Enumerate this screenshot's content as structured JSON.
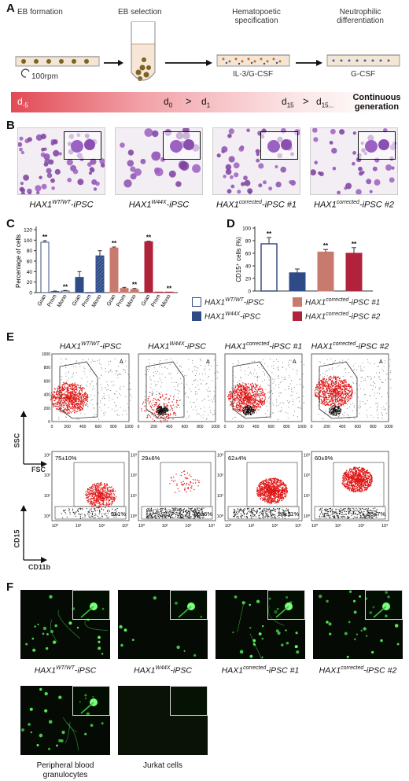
{
  "panelA": {
    "label": "A",
    "steps": [
      "EB formation",
      "EB selection",
      "Hematopoetic specification",
      "Neutrophilic differentiation"
    ],
    "rpm": "100rpm",
    "cytokines1": "IL-3/G-CSF",
    "cytokines2": "G-CSF",
    "timeline": {
      "dm5": "d",
      "dm5sub": "-5",
      "d0": "d",
      "d0sub": "0",
      "gt1": ">",
      "d1": "d",
      "d1sub": "1",
      "d15": "d",
      "d15sub": "15",
      "gt2": ">",
      "d15b": "d",
      "d15bsub": "15...",
      "continuous": "Continuous generation"
    }
  },
  "panelB": {
    "label": "B",
    "captions": [
      {
        "prefix": "HAX1",
        "sup": "WT/WT",
        "suffix": "-iPSC"
      },
      {
        "prefix": "HAX1",
        "sup": "W44X",
        "suffix": "-iPSC"
      },
      {
        "prefix": "HAX1",
        "sup": "corrected",
        "suffix": "-iPSC #1"
      },
      {
        "prefix": "HAX1",
        "sup": "corrected",
        "suffix": "-iPSC #2"
      }
    ]
  },
  "panelC": {
    "label": "C",
    "ylabel": "Percentage of cells",
    "yticks": [
      "0",
      "20",
      "40",
      "60",
      "80",
      "100",
      "120"
    ],
    "categories": [
      "Gran",
      "Prom",
      "Mono"
    ],
    "sig": "**"
  },
  "panelD": {
    "label": "D",
    "ylabel": "CD15⁺ cells (%)",
    "yticks": [
      "0",
      "20",
      "40",
      "60",
      "80",
      "100"
    ],
    "sig": "**"
  },
  "legend": [
    {
      "prefix": "HAX1",
      "sup": "WT/WT",
      "suffix": "-iPSC",
      "color": "#ffffff"
    },
    {
      "prefix": "HAX1",
      "sup": "W44X",
      "suffix": "-iPSC",
      "color": "#2e4a87"
    },
    {
      "prefix": "HAX1",
      "sup": "corrected",
      "suffix": "-iPSC #1",
      "color": "#c97a6e"
    },
    {
      "prefix": "HAX1",
      "sup": "corrected",
      "suffix": "-iPSC #2",
      "color": "#b0233a"
    }
  ],
  "chart_data": [
    {
      "type": "bar",
      "panel": "C",
      "categories": [
        "Gran",
        "Prom",
        "Mono"
      ],
      "ylabel": "Percentage of cells",
      "ylim": [
        0,
        120
      ],
      "series": [
        {
          "name": "HAX1 WT/WT-iPSC",
          "values": [
            96,
            2,
            3
          ],
          "errors": [
            3,
            1,
            1
          ]
        },
        {
          "name": "HAX1 W44X-iPSC",
          "values": [
            29,
            0,
            70
          ],
          "errors": [
            11,
            0,
            10
          ]
        },
        {
          "name": "HAX1 corrected-iPSC #1",
          "values": [
            85,
            8,
            6
          ],
          "errors": [
            2,
            2,
            2
          ]
        },
        {
          "name": "HAX1 corrected-iPSC #2",
          "values": [
            97,
            1,
            1
          ],
          "errors": [
            1,
            0,
            0
          ]
        }
      ]
    },
    {
      "type": "bar",
      "panel": "D",
      "categories": [
        "HAX1 WT/WT-iPSC",
        "HAX1 W44X-iPSC",
        "HAX1 corrected-iPSC #1",
        "HAX1 corrected-iPSC #2"
      ],
      "ylabel": "CD15⁺ cells (%)",
      "ylim": [
        0,
        100
      ],
      "values": [
        75,
        29,
        62,
        60
      ],
      "errors": [
        10,
        6,
        4,
        9
      ]
    }
  ],
  "panelE": {
    "label": "E",
    "titles": [
      {
        "prefix": "HAX1",
        "sup": "WT/WT",
        "suffix": "-iPSC"
      },
      {
        "prefix": "HAX1",
        "sup": "W44X",
        "suffix": "-iPSC"
      },
      {
        "prefix": "HAX1",
        "sup": "corrected",
        "suffix": "-iPSC #1"
      },
      {
        "prefix": "HAX1",
        "sup": "corrected",
        "suffix": "-iPSC #2"
      }
    ],
    "scatter_x": "FSC",
    "scatter_y": "SSC",
    "gate": "A",
    "scatter_ticks": [
      "0",
      "200",
      "400",
      "600",
      "800",
      "1000"
    ],
    "facs_x": "CD11b",
    "facs_y": "CD15",
    "facs_ticks": [
      "10⁰",
      "10¹",
      "10²",
      "10³"
    ],
    "upper": [
      "75±10%",
      "29±6%",
      "62±4%",
      "60±9%"
    ],
    "lower": [
      "9±1%",
      "65±6%",
      "28±11%",
      "35±7%"
    ]
  },
  "panelF": {
    "label": "F",
    "captions": [
      {
        "prefix": "HAX1",
        "sup": "WT/WT",
        "suffix": "-iPSC"
      },
      {
        "prefix": "HAX1",
        "sup": "W44X",
        "suffix": "-iPSC"
      },
      {
        "prefix": "HAX1",
        "sup": "corrected",
        "suffix": "-iPSC #1"
      },
      {
        "prefix": "HAX1",
        "sup": "corrected",
        "suffix": "-iPSC #2"
      }
    ],
    "extra": [
      "Peripheral blood granulocytes",
      "Jurkat cells"
    ]
  },
  "colors": {
    "wt": "#ffffff",
    "w44x": "#2e4a87",
    "corr1": "#c97a6e",
    "corr2": "#b0233a",
    "wtEdge": "#3b4f82"
  }
}
